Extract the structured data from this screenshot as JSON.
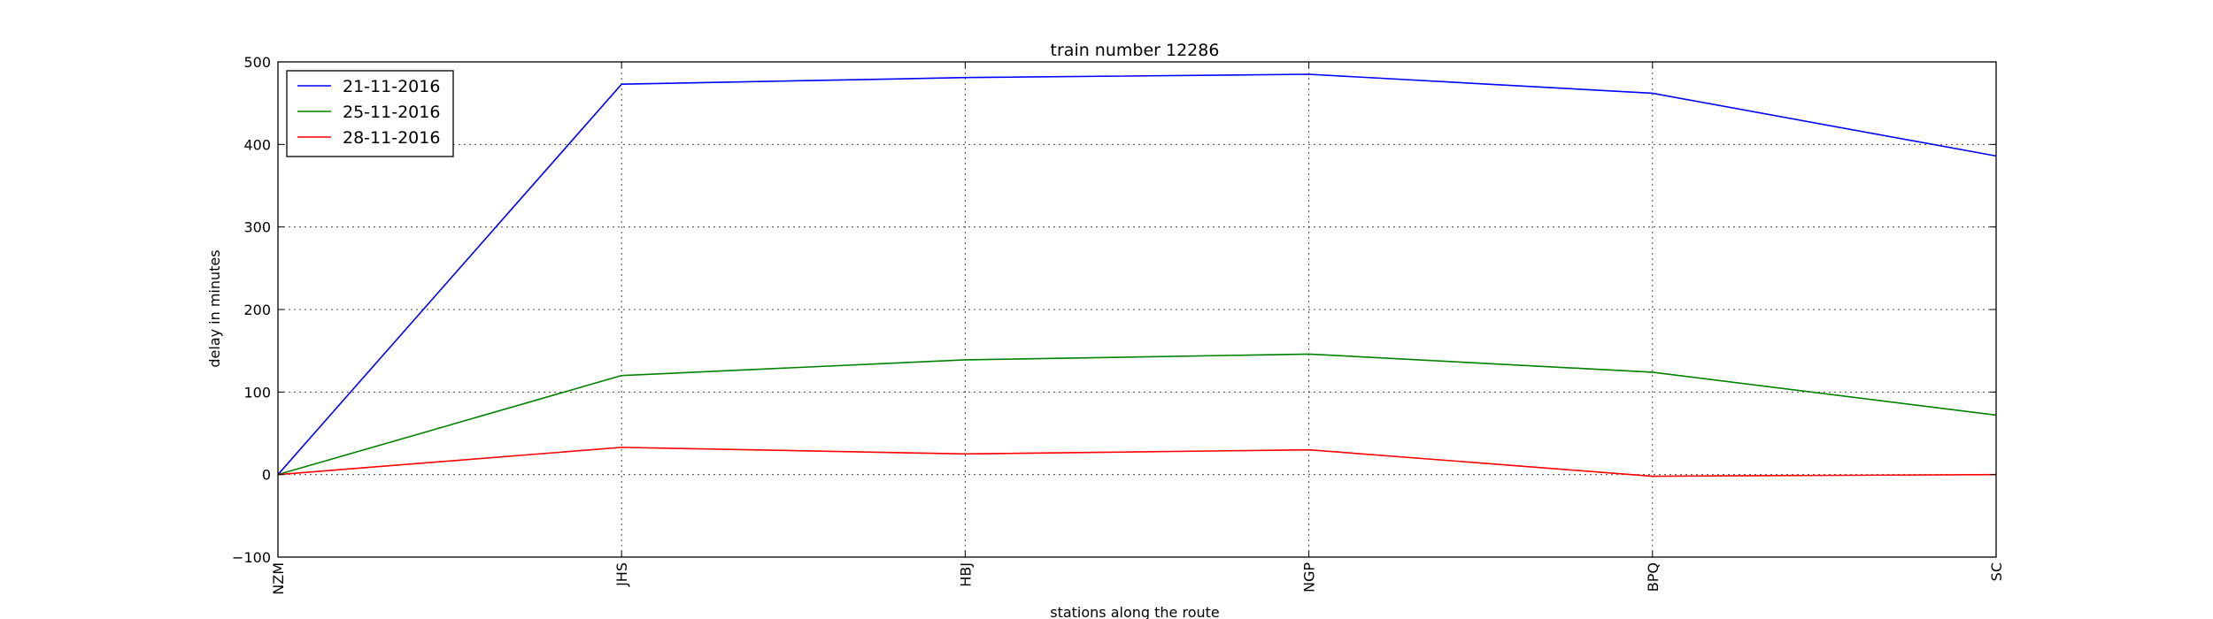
{
  "chart_data": {
    "type": "line",
    "title": "train number 12286",
    "xlabel": "stations along the route",
    "ylabel": "delay in minutes",
    "categories": [
      "NZM",
      "JHS",
      "HBJ",
      "NGP",
      "BPQ",
      "SC"
    ],
    "ylim": [
      -100,
      500
    ],
    "yticks": [
      -100,
      0,
      100,
      200,
      300,
      400,
      500
    ],
    "grid": true,
    "legend_position": "top-left",
    "series": [
      {
        "name": "21-11-2016",
        "color": "#0000ff",
        "values": [
          0,
          473,
          481,
          485,
          462,
          386
        ]
      },
      {
        "name": "25-11-2016",
        "color": "#008000",
        "values": [
          0,
          120,
          139,
          146,
          124,
          72
        ]
      },
      {
        "name": "28-11-2016",
        "color": "#ff0000",
        "values": [
          0,
          33,
          25,
          30,
          -2,
          0
        ]
      }
    ]
  }
}
